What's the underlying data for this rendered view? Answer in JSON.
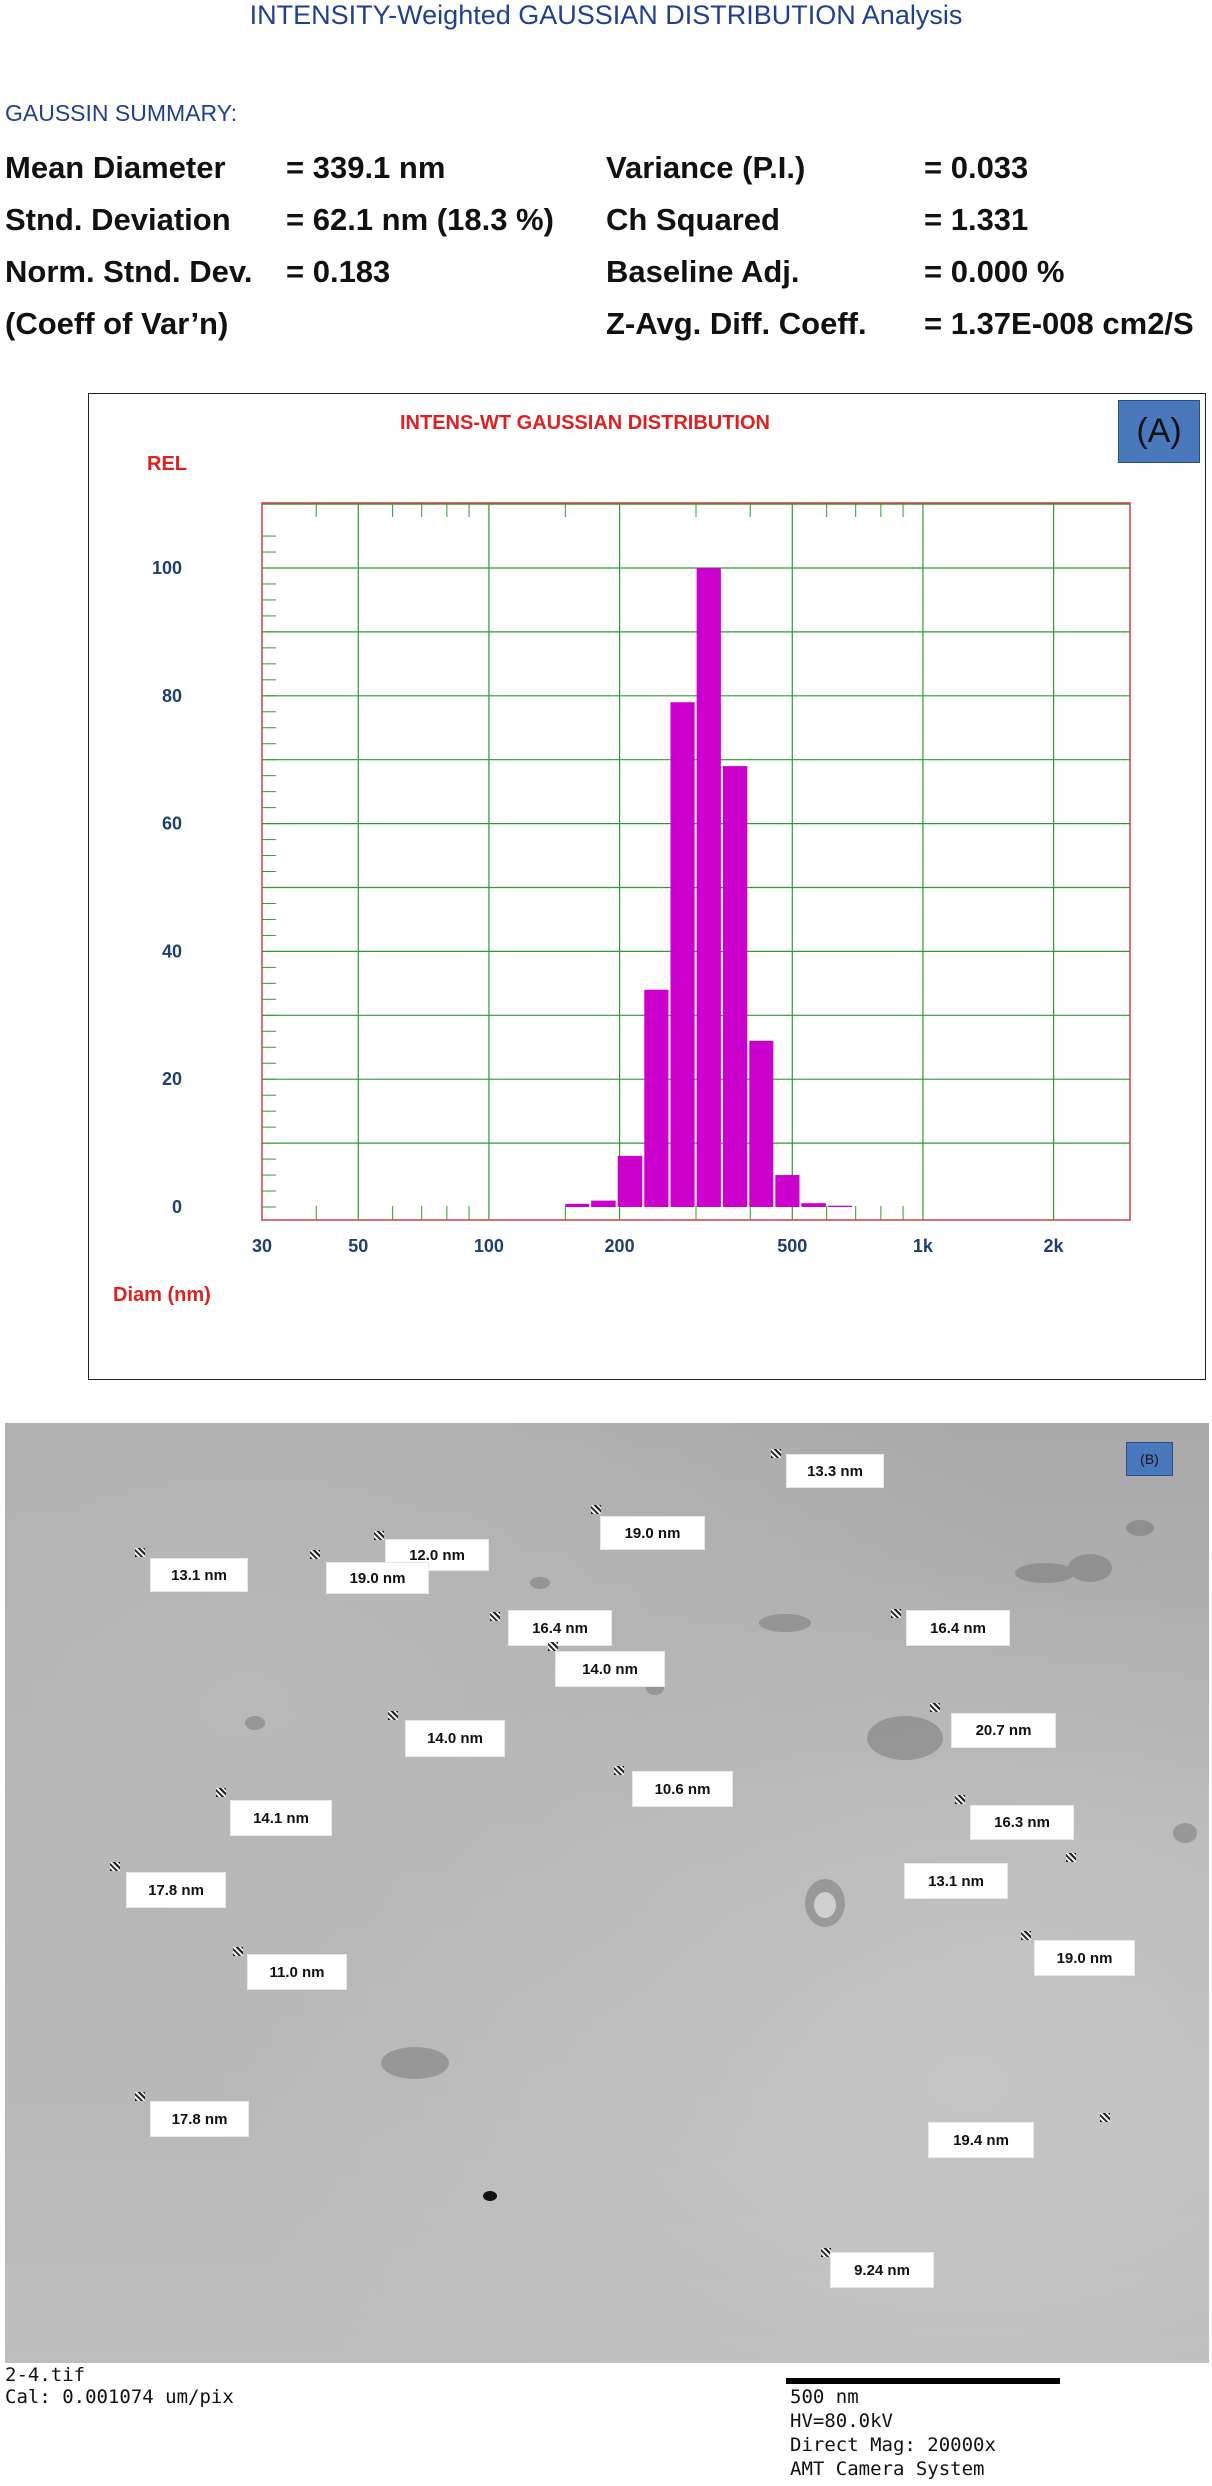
{
  "header": {
    "title": "INTENSITY-Weighted GAUSSIAN DISTRIBUTION Analysis",
    "summary_heading": "GAUSSIN SUMMARY:"
  },
  "summary": {
    "mean_label": "Mean Diameter",
    "mean_value": "=  339.1 nm",
    "std_label": "Stnd. Deviation",
    "std_value": "=  62.1 nm (18.3 %)",
    "norm_label": "Norm. Stnd. Dev.",
    "norm_value": "=  0.183",
    "coeff_label": "(Coeff of Var’n)",
    "variance_label": "Variance (P.I.)",
    "variance_value": "=  0.033",
    "chisq_label": "Ch Squared",
    "chisq_value": "=  1.331",
    "baseline_label": "Baseline Adj.",
    "baseline_value": "=  0.000 %",
    "zavg_label": "Z-Avg. Diff. Coeff.",
    "zavg_value": "=  1.37E-008 cm2/S"
  },
  "panel_a_tag": "(A)",
  "chart_data": {
    "type": "bar",
    "title": "INTENS-WT GAUSSIAN DISTRIBUTION",
    "ylabel": "REL",
    "xlabel": "Diam (nm)",
    "x_scale": "log",
    "xlim": [
      30,
      3000
    ],
    "ylim": [
      0,
      105
    ],
    "y_ticks": [
      0,
      20,
      40,
      60,
      80,
      100
    ],
    "x_ticks": [
      {
        "value": 30,
        "label": "30"
      },
      {
        "value": 50,
        "label": "50"
      },
      {
        "value": 100,
        "label": "100"
      },
      {
        "value": 200,
        "label": "200"
      },
      {
        "value": 500,
        "label": "500"
      },
      {
        "value": 1000,
        "label": "1k"
      },
      {
        "value": 2000,
        "label": "2k"
      }
    ],
    "bins": [
      {
        "lo": 150,
        "hi": 172,
        "value": 0.5
      },
      {
        "lo": 172,
        "hi": 198,
        "value": 1
      },
      {
        "lo": 198,
        "hi": 228,
        "value": 8
      },
      {
        "lo": 228,
        "hi": 262,
        "value": 34
      },
      {
        "lo": 262,
        "hi": 301,
        "value": 79
      },
      {
        "lo": 301,
        "hi": 346,
        "value": 100
      },
      {
        "lo": 346,
        "hi": 398,
        "value": 69
      },
      {
        "lo": 398,
        "hi": 457,
        "value": 26
      },
      {
        "lo": 457,
        "hi": 525,
        "value": 5
      },
      {
        "lo": 525,
        "hi": 604,
        "value": 0.6
      },
      {
        "lo": 604,
        "hi": 694,
        "value": 0.2
      }
    ],
    "bar_color": "#cc00cc",
    "grid": true,
    "grid_color": "#2e9b2e",
    "frame_color": "#d04040",
    "title_color": "#e02020",
    "tick_label_color": "#1f3f6f"
  },
  "micrograph": {
    "tag": "(B)",
    "labels": [
      "13.3 nm",
      "19.0 nm",
      "12.0 nm",
      "13.1 nm",
      "19.0 nm",
      "16.4 nm",
      "16.4 nm",
      "14.0 nm",
      "20.7 nm",
      "14.0 nm",
      "10.6 nm",
      "14.1 nm",
      "16.3 nm",
      "13.1 nm",
      "17.8 nm",
      "19.0 nm",
      "11.0 nm",
      "17.8 nm",
      "19.4 nm",
      "9.24 nm"
    ],
    "file_name": "2-4.tif",
    "calibration": "Cal: 0.001074 um/pix",
    "scale_bar": "500 nm",
    "hv": "HV=80.0kV",
    "magnification": "Direct Mag: 20000x",
    "camera": "AMT Camera System"
  }
}
